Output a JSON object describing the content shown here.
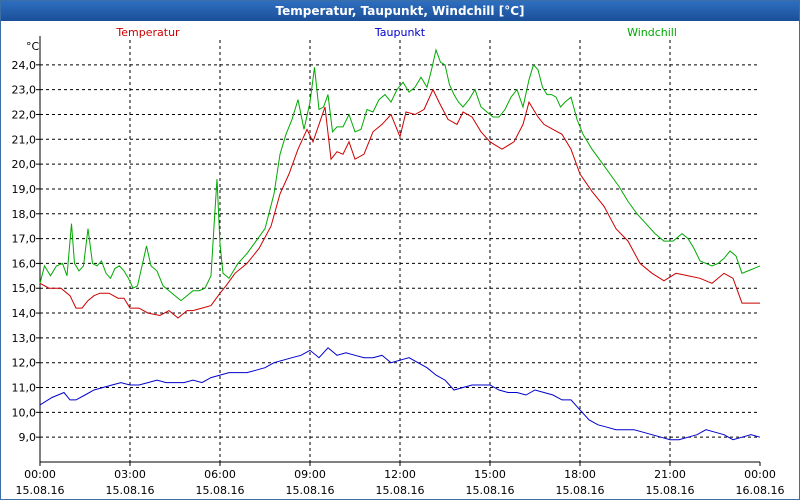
{
  "window": {
    "title": "Temperatur, Taupunkt, Windchill [°C]"
  },
  "chart_data": {
    "type": "line",
    "title": "Temperatur, Taupunkt, Windchill [°C]",
    "ylabel": "°C",
    "xlabel": "",
    "ylim": [
      8.0,
      25.0
    ],
    "xlim_hours": [
      0,
      24
    ],
    "grid": true,
    "y_ticks": [
      "9,0",
      "10,0",
      "11,0",
      "12,0",
      "13,0",
      "14,0",
      "15,0",
      "16,0",
      "17,0",
      "18,0",
      "19,0",
      "20,0",
      "21,0",
      "22,0",
      "23,0",
      "24,0"
    ],
    "y_tick_values": [
      9,
      10,
      11,
      12,
      13,
      14,
      15,
      16,
      17,
      18,
      19,
      20,
      21,
      22,
      23,
      24
    ],
    "x_ticks": [
      {
        "hour": 0,
        "time": "00:00",
        "date": "15.08.16"
      },
      {
        "hour": 3,
        "time": "03:00",
        "date": "15.08.16"
      },
      {
        "hour": 6,
        "time": "06:00",
        "date": "15.08.16"
      },
      {
        "hour": 9,
        "time": "09:00",
        "date": "15.08.16"
      },
      {
        "hour": 12,
        "time": "12:00",
        "date": "15.08.16"
      },
      {
        "hour": 15,
        "time": "15:00",
        "date": "15.08.16"
      },
      {
        "hour": 18,
        "time": "18:00",
        "date": "15.08.16"
      },
      {
        "hour": 21,
        "time": "21:00",
        "date": "15.08.16"
      },
      {
        "hour": 24,
        "time": "00:00",
        "date": "16.08.16"
      }
    ],
    "series": [
      {
        "name": "Temperatur",
        "color": "#cc0000",
        "legend_pos": "left",
        "x": [
          0,
          0.3,
          0.7,
          1.0,
          1.2,
          1.4,
          1.6,
          1.8,
          2.0,
          2.3,
          2.6,
          2.8,
          3.0,
          3.3,
          3.6,
          4.0,
          4.3,
          4.6,
          4.9,
          5.1,
          5.4,
          5.7,
          6.0,
          6.2,
          6.5,
          6.9,
          7.3,
          7.7,
          8.0,
          8.3,
          8.6,
          8.9,
          9.1,
          9.3,
          9.5,
          9.7,
          9.9,
          10.1,
          10.3,
          10.5,
          10.8,
          11.1,
          11.4,
          11.7,
          12.0,
          12.2,
          12.5,
          12.8,
          13.1,
          13.3,
          13.6,
          13.9,
          14.1,
          14.4,
          14.7,
          15.0,
          15.4,
          15.8,
          16.1,
          16.3,
          16.6,
          16.8,
          17.1,
          17.4,
          17.7,
          18.0,
          18.4,
          18.8,
          19.2,
          19.6,
          20.0,
          20.4,
          20.8,
          21.2,
          21.6,
          22.0,
          22.4,
          22.8,
          23.1,
          23.4,
          23.7,
          24.0
        ],
        "y": [
          15.2,
          15.0,
          15.0,
          14.7,
          14.2,
          14.2,
          14.5,
          14.7,
          14.8,
          14.8,
          14.6,
          14.6,
          14.2,
          14.2,
          14.0,
          13.9,
          14.1,
          13.8,
          14.1,
          14.1,
          14.2,
          14.3,
          14.8,
          15.1,
          15.6,
          16.0,
          16.6,
          17.5,
          18.8,
          19.6,
          20.6,
          21.4,
          20.9,
          21.6,
          22.3,
          20.2,
          20.5,
          20.4,
          20.9,
          20.2,
          20.4,
          21.3,
          21.6,
          22.0,
          21.1,
          22.1,
          22.0,
          22.2,
          23.0,
          22.5,
          21.8,
          21.6,
          22.1,
          21.9,
          21.3,
          20.9,
          20.6,
          20.9,
          21.6,
          22.5,
          21.9,
          21.6,
          21.4,
          21.2,
          20.6,
          19.6,
          18.9,
          18.3,
          17.4,
          16.9,
          16.0,
          15.6,
          15.3,
          15.6,
          15.5,
          15.4,
          15.2,
          15.6,
          15.4,
          14.4,
          14.4,
          14.4
        ]
      },
      {
        "name": "Taupunkt",
        "color": "#0000cc",
        "legend_pos": "center",
        "x": [
          0,
          0.4,
          0.8,
          1.0,
          1.2,
          1.5,
          1.8,
          2.1,
          2.4,
          2.7,
          3.0,
          3.3,
          3.6,
          3.9,
          4.2,
          4.5,
          4.8,
          5.1,
          5.4,
          5.7,
          6.0,
          6.3,
          6.6,
          6.9,
          7.2,
          7.5,
          7.8,
          8.1,
          8.4,
          8.7,
          9.0,
          9.3,
          9.6,
          9.9,
          10.2,
          10.5,
          10.8,
          11.1,
          11.4,
          11.7,
          12.0,
          12.3,
          12.6,
          12.9,
          13.2,
          13.5,
          13.8,
          14.1,
          14.4,
          14.7,
          15.0,
          15.3,
          15.6,
          15.9,
          16.2,
          16.5,
          16.8,
          17.1,
          17.4,
          17.7,
          18.0,
          18.3,
          18.6,
          18.9,
          19.2,
          19.5,
          19.8,
          20.1,
          20.4,
          20.7,
          21.0,
          21.3,
          21.6,
          21.9,
          22.2,
          22.5,
          22.8,
          23.1,
          23.4,
          23.7,
          24.0
        ],
        "y": [
          10.3,
          10.6,
          10.8,
          10.5,
          10.5,
          10.7,
          10.9,
          11.0,
          11.1,
          11.2,
          11.1,
          11.1,
          11.2,
          11.3,
          11.2,
          11.2,
          11.2,
          11.3,
          11.2,
          11.4,
          11.5,
          11.6,
          11.6,
          11.6,
          11.7,
          11.8,
          12.0,
          12.1,
          12.2,
          12.3,
          12.5,
          12.2,
          12.6,
          12.3,
          12.4,
          12.3,
          12.2,
          12.2,
          12.3,
          12.0,
          12.1,
          12.2,
          12.0,
          11.8,
          11.5,
          11.3,
          10.9,
          11.0,
          11.1,
          11.1,
          11.1,
          10.9,
          10.8,
          10.8,
          10.7,
          10.9,
          10.8,
          10.7,
          10.5,
          10.5,
          10.1,
          9.7,
          9.5,
          9.4,
          9.3,
          9.3,
          9.3,
          9.2,
          9.1,
          9.0,
          8.9,
          8.9,
          9.0,
          9.1,
          9.3,
          9.2,
          9.1,
          8.9,
          9.0,
          9.1,
          9.0
        ]
      },
      {
        "name": "Windchill",
        "color": "#00aa00",
        "legend_pos": "right",
        "x": [
          0,
          0.15,
          0.35,
          0.55,
          0.75,
          0.9,
          1.05,
          1.15,
          1.3,
          1.45,
          1.6,
          1.75,
          1.9,
          2.05,
          2.2,
          2.35,
          2.5,
          2.65,
          2.8,
          2.95,
          3.1,
          3.25,
          3.4,
          3.55,
          3.7,
          3.9,
          4.1,
          4.3,
          4.5,
          4.7,
          4.9,
          5.1,
          5.3,
          5.5,
          5.7,
          5.8,
          5.9,
          6.0,
          6.1,
          6.3,
          6.6,
          6.9,
          7.2,
          7.5,
          7.8,
          8.0,
          8.2,
          8.4,
          8.6,
          8.8,
          9.0,
          9.15,
          9.3,
          9.45,
          9.6,
          9.75,
          9.9,
          10.1,
          10.3,
          10.5,
          10.7,
          10.9,
          11.1,
          11.3,
          11.5,
          11.7,
          11.9,
          12.1,
          12.3,
          12.5,
          12.7,
          12.9,
          13.05,
          13.2,
          13.35,
          13.5,
          13.65,
          13.8,
          13.95,
          14.1,
          14.3,
          14.5,
          14.7,
          14.9,
          15.1,
          15.3,
          15.5,
          15.7,
          15.9,
          16.1,
          16.3,
          16.45,
          16.6,
          16.75,
          16.9,
          17.05,
          17.2,
          17.35,
          17.5,
          17.7,
          17.9,
          18.1,
          18.4,
          18.7,
          19.0,
          19.3,
          19.6,
          19.9,
          20.2,
          20.5,
          20.8,
          21.1,
          21.4,
          21.6,
          21.8,
          22.0,
          22.2,
          22.4,
          22.6,
          22.8,
          23.0,
          23.2,
          23.4,
          23.6,
          23.8,
          24.0
        ],
        "y": [
          15.2,
          15.9,
          15.5,
          15.9,
          16.0,
          15.5,
          17.6,
          16.0,
          15.7,
          15.9,
          17.4,
          16.0,
          15.9,
          16.1,
          15.6,
          15.4,
          15.8,
          15.9,
          15.7,
          15.4,
          15.0,
          15.1,
          15.9,
          16.7,
          15.9,
          15.7,
          15.1,
          14.9,
          14.7,
          14.5,
          14.7,
          14.9,
          14.9,
          15.0,
          15.5,
          17.5,
          19.4,
          16.8,
          15.6,
          15.4,
          16.0,
          16.4,
          16.9,
          17.4,
          18.8,
          20.4,
          21.2,
          21.8,
          22.6,
          21.4,
          22.5,
          23.9,
          22.2,
          22.3,
          22.8,
          21.3,
          21.5,
          21.5,
          22.0,
          21.3,
          21.4,
          22.2,
          22.1,
          22.6,
          22.8,
          22.5,
          23.0,
          23.3,
          22.9,
          23.1,
          23.5,
          23.1,
          23.8,
          24.6,
          24.1,
          24.0,
          23.2,
          22.8,
          22.5,
          22.3,
          22.6,
          23.0,
          22.3,
          22.1,
          21.9,
          21.9,
          22.2,
          22.7,
          23.0,
          22.3,
          23.4,
          24.0,
          23.8,
          23.1,
          22.8,
          22.8,
          22.7,
          22.3,
          22.5,
          22.7,
          21.8,
          21.2,
          20.6,
          20.1,
          19.6,
          19.1,
          18.5,
          18.0,
          17.6,
          17.2,
          16.9,
          16.9,
          17.2,
          17.0,
          16.6,
          16.1,
          16.0,
          15.9,
          16.0,
          16.2,
          16.5,
          16.3,
          15.6,
          15.7,
          15.8,
          15.9
        ]
      }
    ]
  }
}
